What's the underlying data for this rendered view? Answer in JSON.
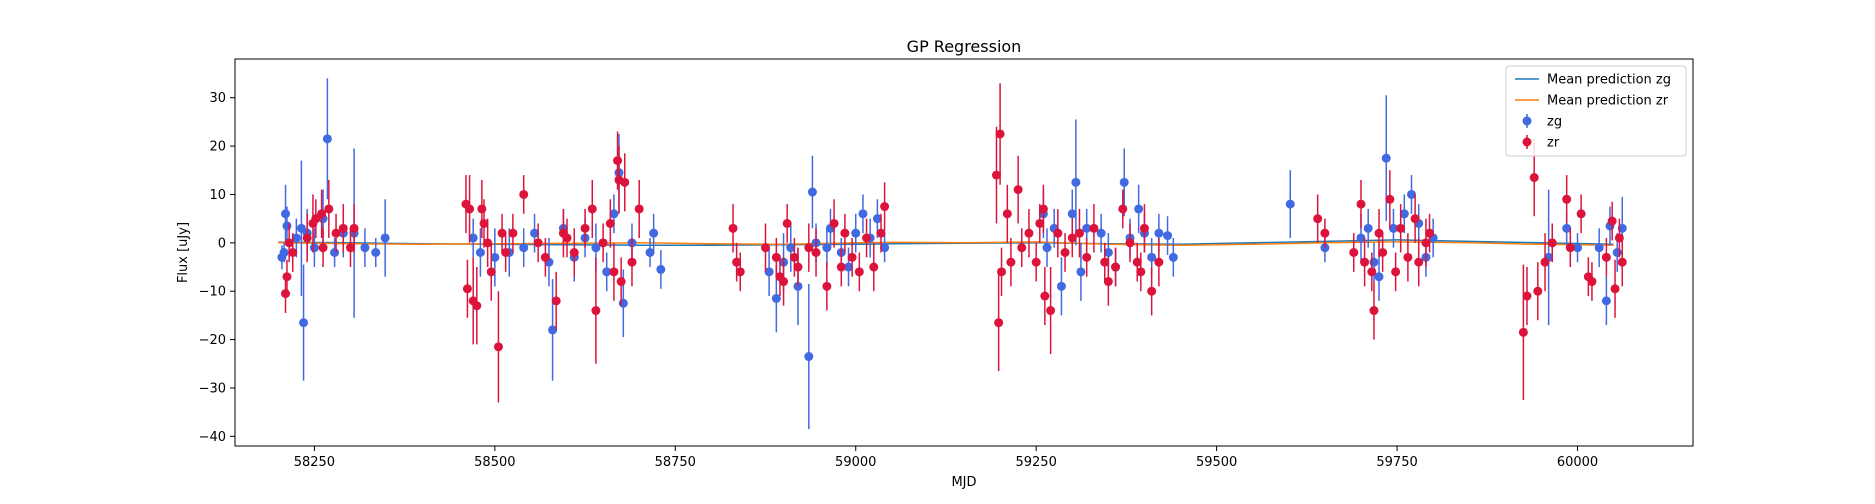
{
  "chart_data": {
    "type": "scatter",
    "title": "GP Regression",
    "xlabel": "MJD",
    "ylabel": "Flux [uJy]",
    "xlim": [
      58140,
      60160
    ],
    "ylim": [
      -42,
      38
    ],
    "x_ticks": [
      58250,
      58500,
      58750,
      59000,
      59250,
      59500,
      59750,
      60000
    ],
    "y_ticks": [
      -40,
      -30,
      -20,
      -10,
      0,
      10,
      20,
      30
    ],
    "grid": false,
    "legend_position": "top-right",
    "legend": [
      {
        "label": "Mean prediction zg",
        "kind": "line",
        "color": "#1f77b4"
      },
      {
        "label": "Mean prediction zr",
        "kind": "line",
        "color": "#ff7f0e"
      },
      {
        "label": "zg",
        "kind": "errorbar",
        "color": "#4169e1"
      },
      {
        "label": "zr",
        "kind": "errorbar",
        "color": "#dc143c"
      }
    ],
    "mean_prediction": [
      {
        "name": "Mean prediction zg",
        "color": "#1f77b4",
        "x": [
          58200,
          58300,
          58400,
          58500,
          58600,
          58700,
          58800,
          58900,
          59000,
          59050,
          59150,
          59250,
          59350,
          59450,
          59550,
          59650,
          59750,
          59850,
          59950,
          60050
        ],
        "y": [
          0.1,
          0.0,
          -0.2,
          -0.3,
          -0.4,
          -0.5,
          -0.5,
          -0.4,
          -0.3,
          -0.2,
          -0.1,
          0.0,
          -0.2,
          -0.3,
          0.0,
          0.3,
          0.6,
          0.3,
          0.0,
          -0.3
        ]
      },
      {
        "name": "Mean prediction zr",
        "color": "#ff7f0e",
        "x": [
          58200,
          58300,
          58400,
          58500,
          58600,
          58700,
          58800,
          58900,
          59000,
          59050,
          59150,
          59250,
          59350,
          59450,
          59550,
          59650,
          59750,
          59850,
          59950,
          60050
        ],
        "y": [
          0.0,
          -0.2,
          -0.3,
          -0.2,
          -0.1,
          0.0,
          -0.2,
          -0.3,
          0.0,
          0.1,
          0.0,
          0.2,
          -0.3,
          -0.5,
          -0.3,
          0.0,
          0.2,
          0.0,
          -0.3,
          -0.5
        ]
      }
    ],
    "series": [
      {
        "name": "zg",
        "color": "#4169e1",
        "points": [
          [
            58205,
            -3,
            2.5
          ],
          [
            58208,
            -2,
            2
          ],
          [
            58210,
            6,
            6
          ],
          [
            58212,
            3.5,
            4
          ],
          [
            58225,
            1,
            4
          ],
          [
            58232,
            3,
            14
          ],
          [
            58235,
            -16.5,
            12
          ],
          [
            58240,
            2,
            5
          ],
          [
            58250,
            -1,
            4
          ],
          [
            58262,
            5,
            6
          ],
          [
            58268,
            21.5,
            12.5
          ],
          [
            58278,
            -2,
            3
          ],
          [
            58290,
            2,
            5
          ],
          [
            58305,
            2,
            17.5
          ],
          [
            58320,
            -1,
            4
          ],
          [
            58335,
            -2,
            3
          ],
          [
            58348,
            1,
            8
          ],
          [
            58470,
            1,
            4
          ],
          [
            58480,
            -2,
            5
          ],
          [
            58500,
            -3,
            6
          ],
          [
            58520,
            -2,
            5
          ],
          [
            58540,
            -1,
            4
          ],
          [
            58555,
            2,
            4
          ],
          [
            58575,
            -4,
            5
          ],
          [
            58580,
            -18,
            10.5
          ],
          [
            58595,
            3,
            4
          ],
          [
            58610,
            -3,
            5
          ],
          [
            58625,
            1,
            4
          ],
          [
            58640,
            -1,
            5
          ],
          [
            58655,
            -6,
            4
          ],
          [
            58665,
            6,
            4
          ],
          [
            58672,
            14.5,
            8
          ],
          [
            58678,
            -12.5,
            7
          ],
          [
            58690,
            0,
            4
          ],
          [
            58715,
            -2,
            3
          ],
          [
            58720,
            2,
            4
          ],
          [
            58730,
            -5.5,
            4
          ],
          [
            58880,
            -6,
            5
          ],
          [
            58890,
            -11.5,
            7
          ],
          [
            58900,
            -4,
            6
          ],
          [
            58910,
            -1,
            5
          ],
          [
            58920,
            -9,
            8
          ],
          [
            58935,
            -23.5,
            15
          ],
          [
            58940,
            10.5,
            7.5
          ],
          [
            58945,
            0,
            4
          ],
          [
            58960,
            -1,
            4
          ],
          [
            58965,
            3,
            4
          ],
          [
            58980,
            -2,
            3
          ],
          [
            58990,
            -5,
            4
          ],
          [
            59000,
            2,
            4
          ],
          [
            59010,
            6,
            4
          ],
          [
            59020,
            1,
            4
          ],
          [
            59030,
            5,
            4
          ],
          [
            59040,
            -1,
            3
          ],
          [
            59260,
            6,
            5
          ],
          [
            59265,
            -1,
            4
          ],
          [
            59275,
            3,
            4
          ],
          [
            59285,
            -9,
            6
          ],
          [
            59300,
            6,
            5
          ],
          [
            59305,
            12.5,
            13
          ],
          [
            59312,
            -6,
            6
          ],
          [
            59320,
            3,
            4
          ],
          [
            59340,
            2,
            4
          ],
          [
            59350,
            -2,
            4
          ],
          [
            59360,
            -5,
            4
          ],
          [
            59372,
            12.5,
            7
          ],
          [
            59380,
            1,
            4
          ],
          [
            59392,
            7,
            5
          ],
          [
            59400,
            2,
            4
          ],
          [
            59410,
            -3,
            4
          ],
          [
            59420,
            2,
            4
          ],
          [
            59432,
            1.5,
            4
          ],
          [
            59440,
            -3,
            4
          ],
          [
            59602,
            8,
            7
          ],
          [
            59650,
            -1,
            3
          ],
          [
            59700,
            1,
            5
          ],
          [
            59710,
            3,
            4
          ],
          [
            59718,
            -4,
            4
          ],
          [
            59725,
            -7,
            5
          ],
          [
            59735,
            17.5,
            13
          ],
          [
            59745,
            3,
            4
          ],
          [
            59760,
            6,
            4
          ],
          [
            59770,
            10,
            4
          ],
          [
            59780,
            4,
            4
          ],
          [
            59790,
            -3,
            4
          ],
          [
            59800,
            1,
            4
          ],
          [
            59960,
            -3,
            14
          ],
          [
            59985,
            3,
            3.5
          ],
          [
            60000,
            -1,
            3
          ],
          [
            60030,
            -1,
            4
          ],
          [
            60040,
            -12,
            5
          ],
          [
            60045,
            3.5,
            4
          ],
          [
            60055,
            -2,
            4
          ],
          [
            60062,
            3,
            6.5
          ]
        ]
      },
      {
        "name": "zr",
        "color": "#dc143c",
        "points": [
          [
            58210,
            -10.5,
            4
          ],
          [
            58212,
            -7,
            3.5
          ],
          [
            58215,
            0,
            4
          ],
          [
            58220,
            -2,
            4
          ],
          [
            58240,
            1,
            5
          ],
          [
            58248,
            4,
            6
          ],
          [
            58252,
            5,
            4
          ],
          [
            58260,
            6,
            5
          ],
          [
            58262,
            -1,
            4
          ],
          [
            58270,
            7,
            6
          ],
          [
            58280,
            2,
            4
          ],
          [
            58290,
            3,
            5
          ],
          [
            58300,
            -1,
            4
          ],
          [
            58305,
            3,
            5
          ],
          [
            58460,
            8,
            6
          ],
          [
            58462,
            -9.5,
            6
          ],
          [
            58465,
            7,
            7
          ],
          [
            58470,
            -12,
            9
          ],
          [
            58475,
            -13,
            8
          ],
          [
            58482,
            7,
            6
          ],
          [
            58485,
            4,
            5
          ],
          [
            58490,
            0,
            5
          ],
          [
            58495,
            -6,
            6
          ],
          [
            58505,
            -21.5,
            11.5
          ],
          [
            58510,
            2,
            4
          ],
          [
            58515,
            -2,
            4
          ],
          [
            58525,
            2,
            4
          ],
          [
            58540,
            10,
            4
          ],
          [
            58560,
            0,
            4
          ],
          [
            58570,
            -3,
            4
          ],
          [
            58585,
            -12,
            6
          ],
          [
            58595,
            2,
            5
          ],
          [
            58600,
            1,
            4
          ],
          [
            58610,
            -2,
            5
          ],
          [
            58625,
            3,
            4
          ],
          [
            58635,
            7,
            6
          ],
          [
            58640,
            -14,
            11
          ],
          [
            58650,
            0,
            4
          ],
          [
            58660,
            4,
            5
          ],
          [
            58665,
            -6,
            6
          ],
          [
            58670,
            17,
            6
          ],
          [
            58672,
            13,
            7
          ],
          [
            58675,
            -8,
            5
          ],
          [
            58680,
            12.5,
            6
          ],
          [
            58690,
            -4,
            5
          ],
          [
            58700,
            7,
            6
          ],
          [
            58830,
            3,
            5
          ],
          [
            58835,
            -4,
            4
          ],
          [
            58840,
            -6,
            4
          ],
          [
            58875,
            -1,
            5
          ],
          [
            58890,
            -3,
            4
          ],
          [
            58895,
            -7,
            4
          ],
          [
            58900,
            -8,
            5
          ],
          [
            58905,
            4,
            4
          ],
          [
            58915,
            -3,
            4
          ],
          [
            58920,
            -5,
            4
          ],
          [
            58935,
            -1,
            5
          ],
          [
            58945,
            -2,
            5
          ],
          [
            58960,
            -9,
            5
          ],
          [
            58970,
            4,
            5
          ],
          [
            58980,
            -5,
            4
          ],
          [
            58985,
            2,
            4
          ],
          [
            58995,
            -3,
            4
          ],
          [
            59005,
            -6,
            4
          ],
          [
            59015,
            1,
            4
          ],
          [
            59025,
            -5,
            5
          ],
          [
            59035,
            2,
            4
          ],
          [
            59040,
            7.5,
            5
          ],
          [
            59195,
            14,
            10
          ],
          [
            59198,
            -16.5,
            10
          ],
          [
            59200,
            22.5,
            10.5
          ],
          [
            59202,
            -6,
            5
          ],
          [
            59210,
            6,
            6
          ],
          [
            59215,
            -4,
            5
          ],
          [
            59225,
            11,
            7
          ],
          [
            59230,
            -1,
            4
          ],
          [
            59240,
            2,
            5
          ],
          [
            59250,
            -4,
            4
          ],
          [
            59255,
            4,
            4
          ],
          [
            59260,
            7,
            5
          ],
          [
            59262,
            -11,
            6
          ],
          [
            59270,
            -14,
            9
          ],
          [
            59280,
            2,
            5
          ],
          [
            59290,
            -2,
            4
          ],
          [
            59300,
            1,
            4
          ],
          [
            59310,
            2,
            5
          ],
          [
            59320,
            -3,
            4
          ],
          [
            59330,
            3,
            5
          ],
          [
            59345,
            -4,
            4
          ],
          [
            59350,
            -8,
            5
          ],
          [
            59360,
            -5,
            4
          ],
          [
            59370,
            7,
            4
          ],
          [
            59380,
            0,
            4
          ],
          [
            59390,
            -4,
            4
          ],
          [
            59395,
            -6,
            4
          ],
          [
            59400,
            3,
            5
          ],
          [
            59410,
            -10,
            5
          ],
          [
            59420,
            -4,
            5
          ],
          [
            59640,
            5,
            5
          ],
          [
            59650,
            2,
            3
          ],
          [
            59690,
            -2,
            4
          ],
          [
            59700,
            8,
            5
          ],
          [
            59705,
            -4,
            5
          ],
          [
            59715,
            -6,
            4
          ],
          [
            59718,
            -14,
            6
          ],
          [
            59725,
            2,
            5
          ],
          [
            59730,
            -2,
            4
          ],
          [
            59740,
            9,
            6
          ],
          [
            59748,
            -6,
            4
          ],
          [
            59755,
            3,
            5
          ],
          [
            59765,
            -3,
            5
          ],
          [
            59775,
            5,
            5
          ],
          [
            59780,
            -4,
            5
          ],
          [
            59790,
            0,
            5
          ],
          [
            59795,
            2,
            4
          ],
          [
            59925,
            -18.5,
            14
          ],
          [
            59930,
            -11,
            6
          ],
          [
            59940,
            13.5,
            8
          ],
          [
            59945,
            -10,
            6
          ],
          [
            59955,
            -4,
            6
          ],
          [
            59965,
            0,
            4
          ],
          [
            59985,
            9,
            5
          ],
          [
            59990,
            -1,
            4
          ],
          [
            60005,
            6,
            4
          ],
          [
            60015,
            -7,
            4
          ],
          [
            60020,
            -8,
            4
          ],
          [
            60040,
            -3,
            4
          ],
          [
            60048,
            4.5,
            4
          ],
          [
            60052,
            -9.5,
            6
          ],
          [
            60058,
            1,
            4
          ],
          [
            60062,
            -4,
            5
          ]
        ]
      }
    ]
  }
}
